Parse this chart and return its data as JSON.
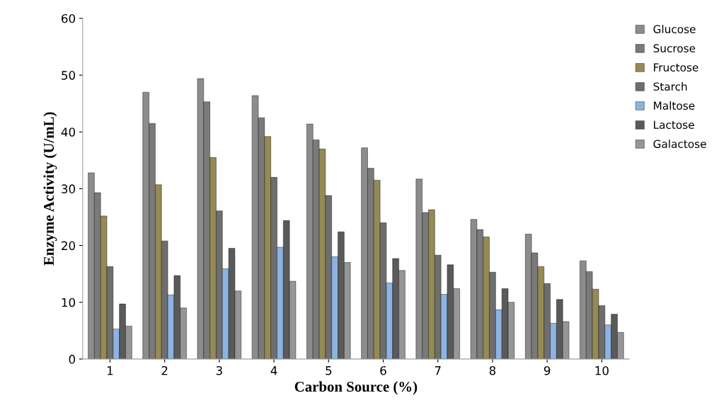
{
  "chart_data": {
    "type": "bar",
    "xlabel": "Carbon Source (%)",
    "ylabel": "Enzyme Activity (U/mL)",
    "categories": [
      "1",
      "2",
      "3",
      "4",
      "5",
      "6",
      "7",
      "8",
      "9",
      "10"
    ],
    "series": [
      {
        "name": "Glucose",
        "color": "#8c8c8c",
        "values": [
          32.8,
          47.0,
          49.4,
          46.4,
          41.4,
          37.2,
          31.7,
          24.6,
          22.0,
          17.3
        ]
      },
      {
        "name": "Sucrose",
        "color": "#7a7a7a",
        "values": [
          29.3,
          41.5,
          45.3,
          42.5,
          38.6,
          33.6,
          25.8,
          22.8,
          18.7,
          15.4
        ]
      },
      {
        "name": "Fructose",
        "color": "#948a54",
        "values": [
          25.2,
          30.7,
          35.5,
          39.2,
          37.0,
          31.5,
          26.3,
          21.5,
          16.3,
          12.3
        ]
      },
      {
        "name": "Starch",
        "color": "#6e6e6e",
        "values": [
          16.3,
          20.8,
          26.1,
          32.0,
          28.8,
          24.0,
          18.3,
          15.3,
          13.3,
          9.4
        ]
      },
      {
        "name": "Maltose",
        "color": "#8db3e2",
        "values": [
          5.3,
          11.3,
          15.9,
          19.7,
          18.0,
          13.4,
          11.4,
          8.7,
          6.3,
          6.0
        ]
      },
      {
        "name": "Lactose",
        "color": "#5a5a5a",
        "values": [
          9.7,
          14.7,
          19.5,
          24.4,
          22.4,
          17.7,
          16.6,
          12.4,
          10.5,
          7.9
        ]
      },
      {
        "name": "Galactose",
        "color": "#969696",
        "values": [
          5.8,
          9.0,
          12.0,
          13.7,
          17.0,
          15.6,
          12.4,
          10.0,
          6.6,
          4.7
        ]
      }
    ],
    "ylim": [
      0,
      60
    ],
    "yticks": [
      0,
      10,
      20,
      30,
      40,
      50,
      60
    ],
    "grid": false,
    "legend": "top right"
  }
}
